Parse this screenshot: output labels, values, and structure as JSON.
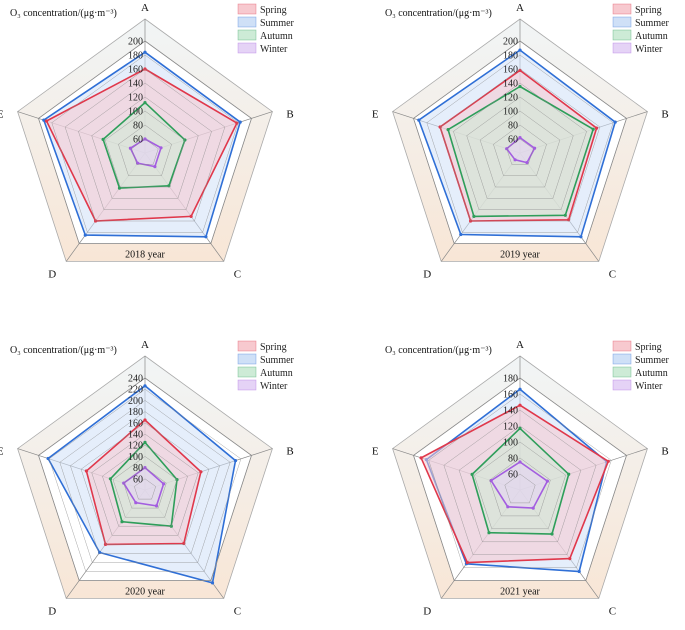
{
  "figure": {
    "unit_label": "O₃ concentration/(μg·m⁻³)"
  },
  "colors": {
    "spring": "#e0384b",
    "summer": "#2f6fd6",
    "autumn": "#2e9e5a",
    "winter": "#a35de0",
    "spring_fill": "#f7c9cf",
    "summer_fill": "#cfe0f7",
    "autumn_fill": "#cdebd6",
    "winter_fill": "#e5d3f6",
    "web": "#888888",
    "band_top": "#f1f5f6",
    "band_bottom": "#f8e6d6"
  },
  "chart_data": [
    {
      "type": "radar",
      "title": "2018 year",
      "axes": [
        "A",
        "B",
        "C",
        "D",
        "E"
      ],
      "ticks": [
        60,
        80,
        100,
        120,
        140,
        160,
        180,
        200
      ],
      "range": [
        40,
        200
      ],
      "legend": [
        "Spring",
        "Summer",
        "Autumn",
        "Winter"
      ],
      "series": [
        {
          "name": "Spring",
          "values": [
            160,
            178,
            152,
            160,
            188
          ]
        },
        {
          "name": "Summer",
          "values": [
            184,
            183,
            188,
            185,
            192
          ]
        },
        {
          "name": "Autumn",
          "values": [
            112,
            100,
            98,
            102,
            103
          ]
        },
        {
          "name": "Winter",
          "values": [
            60,
            64,
            64,
            58,
            62
          ]
        }
      ]
    },
    {
      "type": "radar",
      "title": "2019 year",
      "axes": [
        "A",
        "B",
        "C",
        "D",
        "E"
      ],
      "ticks": [
        60,
        80,
        100,
        120,
        140,
        160,
        180,
        200
      ],
      "range": [
        40,
        200
      ],
      "legend": [
        "Spring",
        "Summer",
        "Autumn",
        "Winter"
      ],
      "series": [
        {
          "name": "Spring",
          "values": [
            158,
            155,
            158,
            160,
            160
          ]
        },
        {
          "name": "Summer",
          "values": [
            187,
            183,
            188,
            184,
            192
          ]
        },
        {
          "name": "Autumn",
          "values": [
            135,
            150,
            150,
            152,
            148
          ]
        },
        {
          "name": "Winter",
          "values": [
            62,
            62,
            57,
            52,
            60
          ]
        }
      ]
    },
    {
      "type": "radar",
      "title": "2020 year",
      "axes": [
        "A",
        "B",
        "C",
        "D",
        "E"
      ],
      "ticks": [
        60,
        80,
        100,
        120,
        140,
        160,
        180,
        200,
        220,
        240
      ],
      "range": [
        40,
        240
      ],
      "legend": [
        "Spring",
        "Summer",
        "Autumn",
        "Winter"
      ],
      "series": [
        {
          "name": "Spring",
          "values": [
            165,
            145,
            158,
            160,
            150
          ]
        },
        {
          "name": "Summer",
          "values": [
            226,
            210,
            245,
            178,
            222
          ]
        },
        {
          "name": "Autumn",
          "values": [
            125,
            100,
            120,
            110,
            105
          ]
        },
        {
          "name": "Winter",
          "values": [
            80,
            75,
            75,
            68,
            80
          ]
        }
      ]
    },
    {
      "type": "radar",
      "title": "2021 year",
      "axes": [
        "A",
        "B",
        "C",
        "D",
        "E"
      ],
      "ticks": [
        60,
        80,
        100,
        120,
        140,
        160,
        180
      ],
      "range": [
        40,
        180
      ],
      "legend": [
        "Spring",
        "Summer",
        "Autumn",
        "Winter"
      ],
      "series": [
        {
          "name": "Spring",
          "values": [
            146,
            156,
            146,
            152,
            170
          ]
        },
        {
          "name": "Summer",
          "values": [
            166,
            154,
            166,
            154,
            163
          ]
        },
        {
          "name": "Autumn",
          "values": [
            117,
            104,
            108,
            106,
            103
          ]
        },
        {
          "name": "Winter",
          "values": [
            75,
            76,
            68,
            66,
            78
          ]
        }
      ]
    }
  ]
}
